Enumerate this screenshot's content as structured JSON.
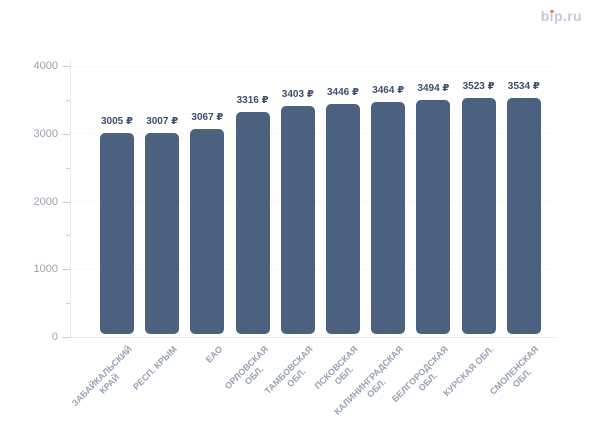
{
  "logo": {
    "text": "bip.ru",
    "parts": [
      "b",
      "i",
      "p.ru"
    ],
    "text_color": "#c5c9d7",
    "dot_color": "#ed8064"
  },
  "chart_data": {
    "type": "bar",
    "title": "",
    "xlabel": "",
    "ylabel": "",
    "categories": [
      "ЗАБАЙКАЛЬСКИЙ\nКРАЙ",
      "РЕСП. КРЫМ",
      "ЕАО",
      "ОРЛОВСКАЯ\nОБЛ.",
      "ТАМБОВСКАЯ\nОБЛ.",
      "ПСКОВСКАЯ\nОБЛ.",
      "КАЛИНИНГРАДСКАЯ\nОБЛ.",
      "БЕЛГОРОДСКАЯ\nОБЛ.",
      "КУРСКАЯ ОБЛ.",
      "СМОЛЕНСКАЯ\nОБЛ."
    ],
    "values": [
      3005,
      3007,
      3067,
      3316,
      3403,
      3446,
      3464,
      3494,
      3523,
      3534
    ],
    "value_suffix": "₽",
    "ylim": [
      0,
      4000
    ],
    "y_major_ticks": [
      0,
      1000,
      2000,
      3000,
      4000
    ],
    "y_minor_ticks": [
      500,
      1500,
      2500,
      3500
    ],
    "grid": "horizontal dotted lines at major ticks",
    "legend_position": "none",
    "colors": {
      "bar": "#4c6080",
      "value_label": "#3d4e6c",
      "y_axis_label": "#9ba1ac",
      "x_axis_label": "#99a2b3",
      "gridline": "#e2e4e8",
      "axis_line": "#e6e8ec",
      "tick": "#c9ced6"
    }
  }
}
